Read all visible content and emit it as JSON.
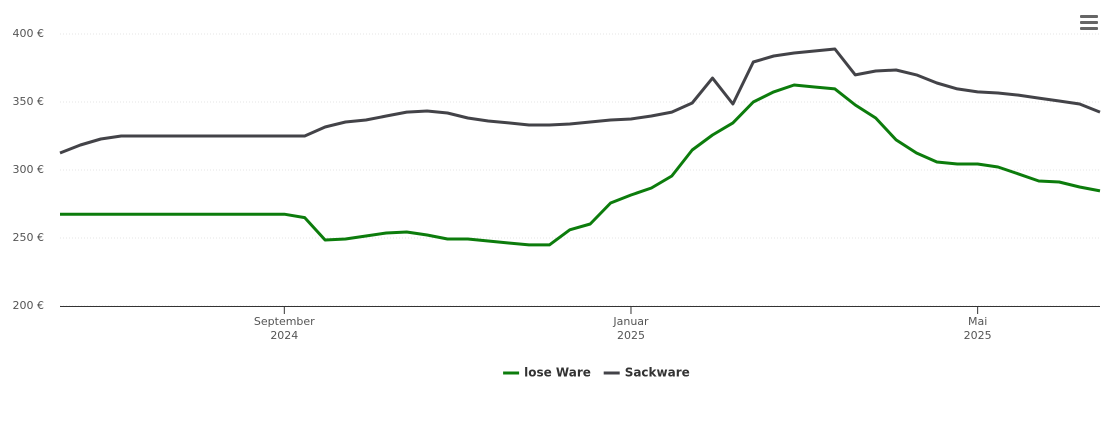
{
  "chart_data": {
    "type": "line",
    "categories": [
      null,
      null,
      null,
      null,
      null,
      null,
      null,
      null,
      null,
      null,
      null,
      "September 2024",
      null,
      null,
      null,
      null,
      null,
      null,
      null,
      null,
      null,
      null,
      null,
      null,
      null,
      null,
      null,
      null,
      "Januar 2025",
      null,
      null,
      null,
      null,
      null,
      null,
      null,
      null,
      null,
      null,
      null,
      null,
      null,
      null,
      null,
      null,
      "Mai 2025",
      null,
      null,
      null,
      null,
      null,
      null
    ],
    "series": [
      {
        "name": "lose Ware",
        "color": "#0c7c0c",
        "values": [
          267.5,
          267.5,
          267.5,
          267.5,
          267.5,
          267.5,
          267.5,
          267.5,
          267.5,
          267.5,
          267.5,
          267.5,
          265,
          248.5,
          249.3,
          251.5,
          253.7,
          254.4,
          252.2,
          249.3,
          249.3,
          247.8,
          246.3,
          244.9,
          244.9,
          256,
          260.3,
          275.7,
          281.6,
          286.8,
          295.6,
          314.7,
          325.7,
          334.6,
          350,
          357.4,
          362.5,
          361,
          359.6,
          347.8,
          338.2,
          322.1,
          312.5,
          305.9,
          304.4,
          304.4,
          302.2,
          297.1,
          291.9,
          291.2,
          287.5,
          284.6
        ]
      },
      {
        "name": "Sackware",
        "color": "#434348",
        "values": [
          312.5,
          318.4,
          322.8,
          325,
          325,
          325,
          325,
          325,
          325,
          325,
          325,
          325,
          325,
          331.6,
          335.3,
          336.8,
          339.7,
          342.6,
          343.4,
          341.9,
          338.2,
          336,
          334.6,
          333.1,
          333.1,
          333.8,
          335.3,
          336.8,
          337.5,
          339.7,
          342.6,
          349.3,
          367.6,
          348.5,
          379.4,
          383.8,
          386,
          387.5,
          389,
          369.9,
          372.8,
          373.5,
          369.9,
          364,
          359.6,
          357.4,
          356.6,
          355.1,
          352.9,
          350.7,
          348.5,
          342.6
        ]
      }
    ],
    "ylim": [
      200,
      400
    ],
    "yticks": [
      {
        "value": 200,
        "label": "200 €"
      },
      {
        "value": 250,
        "label": "250 €"
      },
      {
        "value": 300,
        "label": "300 €"
      },
      {
        "value": 350,
        "label": "350 €"
      },
      {
        "value": 400,
        "label": "400 €"
      }
    ],
    "grid": true,
    "legend": "bottom"
  }
}
